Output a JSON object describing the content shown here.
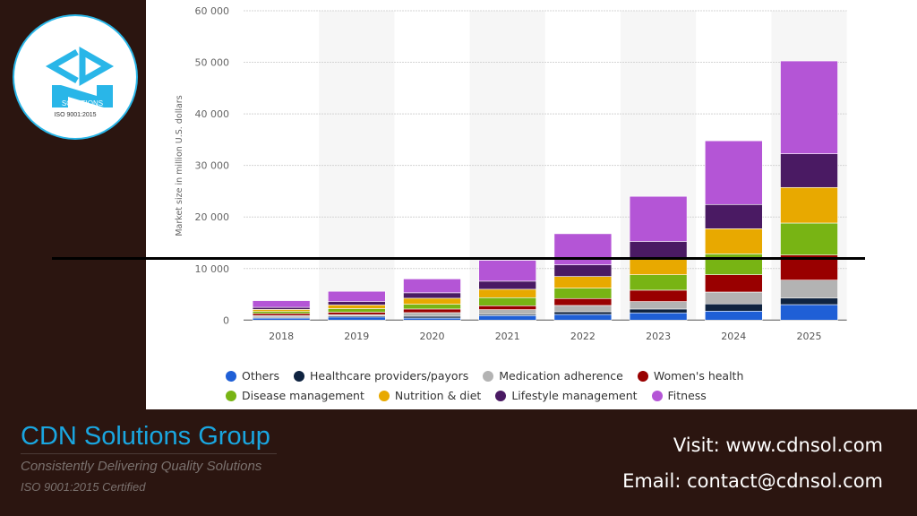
{
  "logo": {
    "text": "CDN",
    "subtitle": "SOLUTIONS",
    "iso": "ISO 9001:2015"
  },
  "footer": {
    "brand": "CDN Solutions Group",
    "tagline": "Consistently Delivering Quality Solutions",
    "iso": "ISO 9001:2015 Certified",
    "visit": "Visit: www.cdnsol.com",
    "email": "Email: contact@cdnsol.com"
  },
  "chart_data": {
    "type": "bar",
    "stacked": true,
    "title": "",
    "xlabel": "",
    "ylabel": "Market size in million U.S. dollars",
    "ylim": [
      0,
      60000
    ],
    "yticks": [
      0,
      10000,
      20000,
      30000,
      40000,
      50000,
      60000
    ],
    "ytick_labels": [
      "0",
      "10 000",
      "20 000",
      "30 000",
      "40 000",
      "50 000",
      "60 000"
    ],
    "grid": true,
    "legend_position": "bottom",
    "categories": [
      "2018",
      "2019",
      "2020",
      "2021",
      "2022",
      "2023",
      "2024",
      "2025"
    ],
    "series": [
      {
        "name": "Others",
        "color": "#1f5fd6",
        "values": [
          400,
          600,
          400,
          870,
          1100,
          1400,
          1740,
          3000
        ]
      },
      {
        "name": "Healthcare providers/payors",
        "color": "#0f2340",
        "values": [
          170,
          230,
          350,
          240,
          520,
          750,
          1400,
          1270
        ]
      },
      {
        "name": "Medication adherence",
        "color": "#b3b3b3",
        "values": [
          300,
          230,
          700,
          920,
          1220,
          1450,
          2300,
          3480
        ]
      },
      {
        "name": "Women's health",
        "color": "#990000",
        "values": [
          400,
          470,
          700,
          750,
          1340,
          2200,
          3360,
          4870
        ]
      },
      {
        "name": "Disease management",
        "color": "#78b414",
        "values": [
          400,
          700,
          930,
          1570,
          2020,
          3000,
          4050,
          6200
        ]
      },
      {
        "name": "Nutrition & diet",
        "color": "#e8a900",
        "values": [
          400,
          700,
          1160,
          1630,
          2260,
          3300,
          4870,
          6900
        ]
      },
      {
        "name": "Lifestyle management",
        "color": "#4a1a63",
        "values": [
          400,
          650,
          1050,
          1570,
          2260,
          3150,
          4700,
          6540
        ]
      },
      {
        "name": "Fitness",
        "color": "#b455d6",
        "values": [
          1300,
          2000,
          2700,
          4050,
          6030,
          8750,
          12350,
          18000
        ]
      }
    ]
  }
}
